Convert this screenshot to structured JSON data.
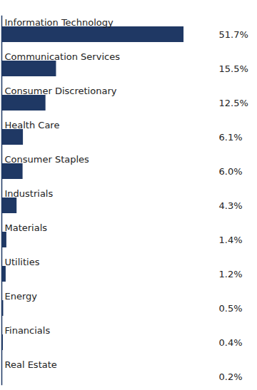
{
  "chart_data": {
    "type": "bar",
    "orientation": "horizontal",
    "categories": [
      "Information Technology",
      "Communication Services",
      "Consumer Discretionary",
      "Health Care",
      "Consumer Staples",
      "Industrials",
      "Materials",
      "Utilities",
      "Energy",
      "Financials",
      "Real Estate"
    ],
    "values": [
      51.7,
      15.5,
      12.5,
      6.1,
      6.0,
      4.3,
      1.4,
      1.2,
      0.5,
      0.4,
      0.2
    ],
    "value_labels": [
      "51.7%",
      "15.5%",
      "12.5%",
      "6.1%",
      "6.0%",
      "4.3%",
      "1.4%",
      "1.2%",
      "0.5%",
      "0.4%",
      "0.2%"
    ],
    "data_labels": true,
    "color": "#1f3864",
    "xlim": [
      0,
      60
    ],
    "tick_labels": false,
    "grid": false
  }
}
